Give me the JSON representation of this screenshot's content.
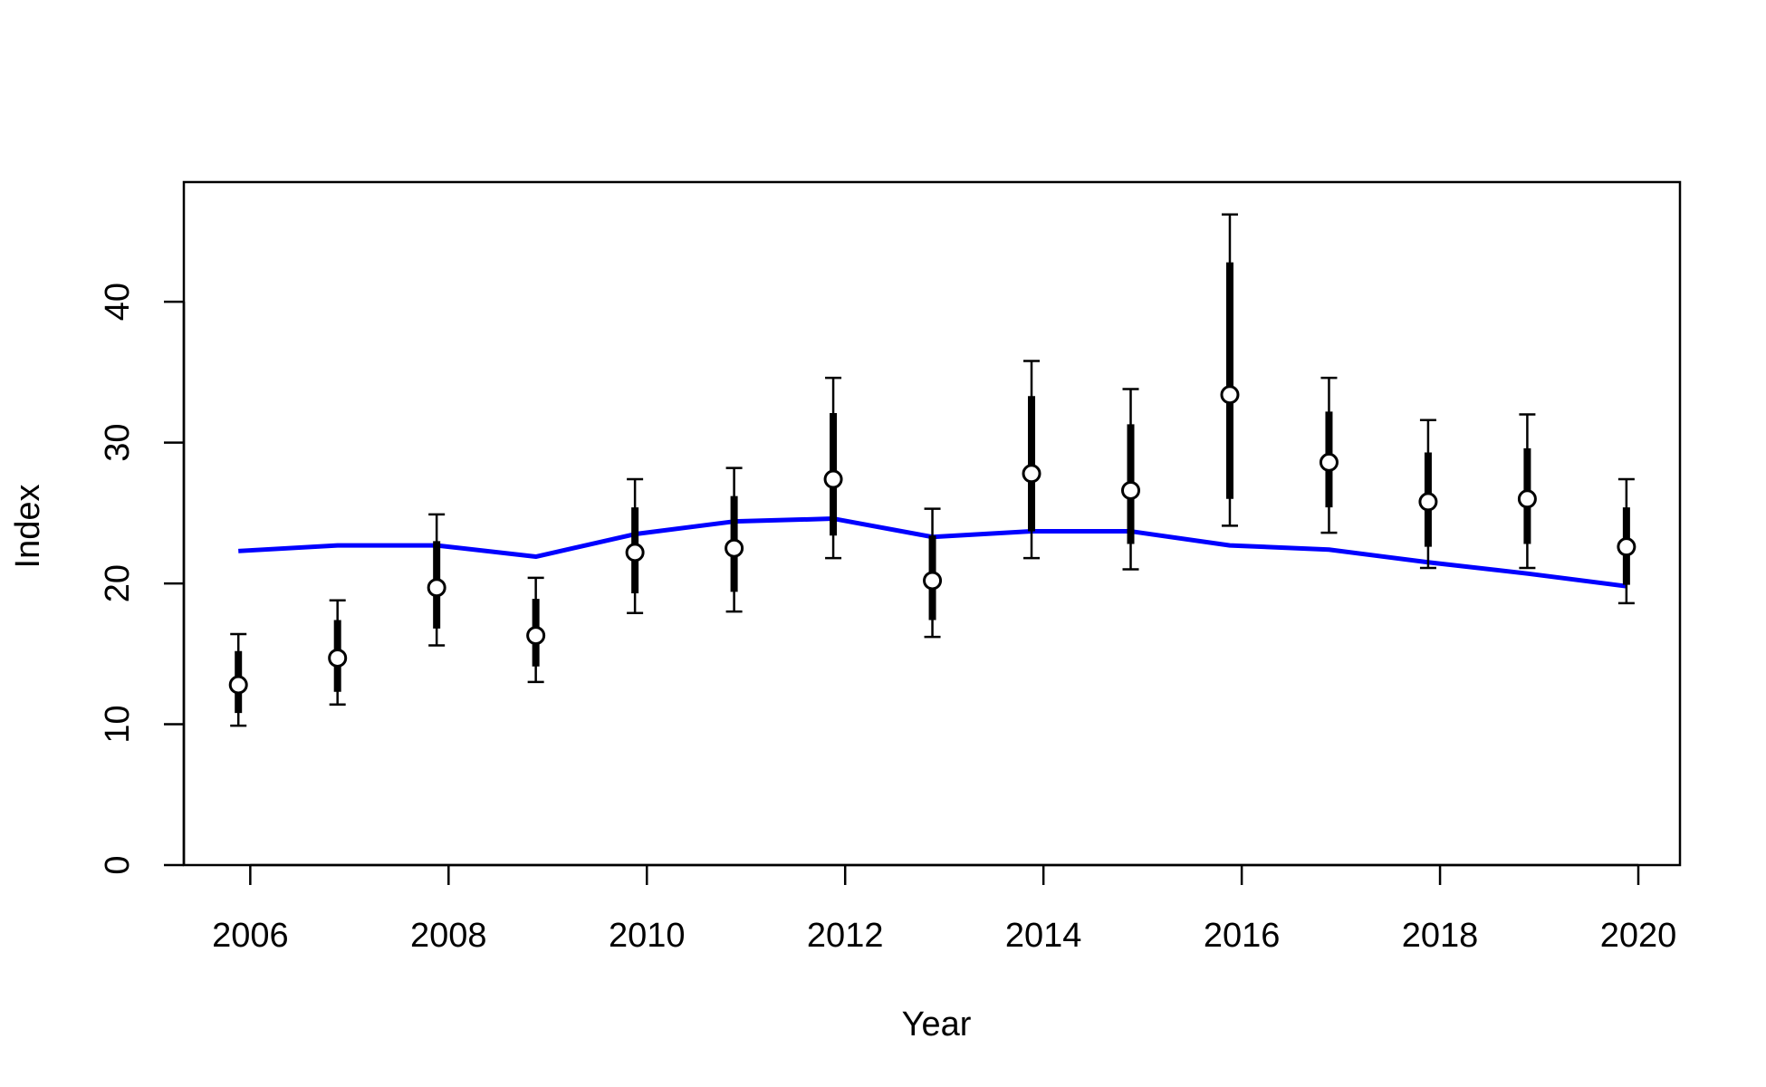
{
  "chart_data": {
    "type": "scatter",
    "title": "",
    "xlabel": "Year",
    "ylabel": "Index",
    "xlim": [
      2005.33,
      2020.42
    ],
    "ylim": [
      0,
      48.5
    ],
    "x_ticks": [
      2006,
      2008,
      2010,
      2012,
      2014,
      2016,
      2018,
      2020
    ],
    "y_ticks": [
      0,
      10,
      20,
      30,
      40
    ],
    "grid": false,
    "legend": null,
    "colors": {
      "points": "#000000",
      "point_fill": "#ffffff",
      "fit_line": "#0000ff",
      "frame": "#000000"
    },
    "observed": {
      "x": [
        2005.88,
        2006.88,
        2007.88,
        2008.88,
        2009.88,
        2010.88,
        2011.88,
        2012.88,
        2013.88,
        2014.88,
        2015.88,
        2016.88,
        2017.88,
        2018.88,
        2019.88
      ],
      "y": [
        12.8,
        14.7,
        19.7,
        16.3,
        22.2,
        22.5,
        27.4,
        20.2,
        27.8,
        26.6,
        33.4,
        28.6,
        25.8,
        26.0,
        22.6
      ],
      "inner_low": [
        10.8,
        12.3,
        16.8,
        14.1,
        19.3,
        19.4,
        23.4,
        17.4,
        23.7,
        22.8,
        26.0,
        25.4,
        22.6,
        22.8,
        19.9
      ],
      "inner_high": [
        15.2,
        17.4,
        23.0,
        18.9,
        25.4,
        26.2,
        32.1,
        23.4,
        33.3,
        31.3,
        42.8,
        32.2,
        29.3,
        29.6,
        25.4
      ],
      "outer_low": [
        9.9,
        11.4,
        15.6,
        13.0,
        17.9,
        18.0,
        21.8,
        16.2,
        21.8,
        21.0,
        24.1,
        23.6,
        21.1,
        21.1,
        18.6
      ],
      "outer_high": [
        16.4,
        18.8,
        24.9,
        20.4,
        27.4,
        28.2,
        34.6,
        25.3,
        35.8,
        33.8,
        46.2,
        34.6,
        31.6,
        32.0,
        27.4
      ]
    },
    "fit": {
      "x": [
        2005.88,
        2006.88,
        2007.88,
        2008.88,
        2009.88,
        2010.88,
        2011.88,
        2012.88,
        2013.88,
        2014.88,
        2015.88,
        2016.88,
        2017.88,
        2018.88,
        2019.88
      ],
      "y": [
        22.3,
        22.7,
        22.7,
        21.9,
        23.5,
        24.4,
        24.6,
        23.3,
        23.7,
        23.7,
        22.7,
        22.4,
        21.5,
        20.7,
        19.8
      ]
    }
  }
}
